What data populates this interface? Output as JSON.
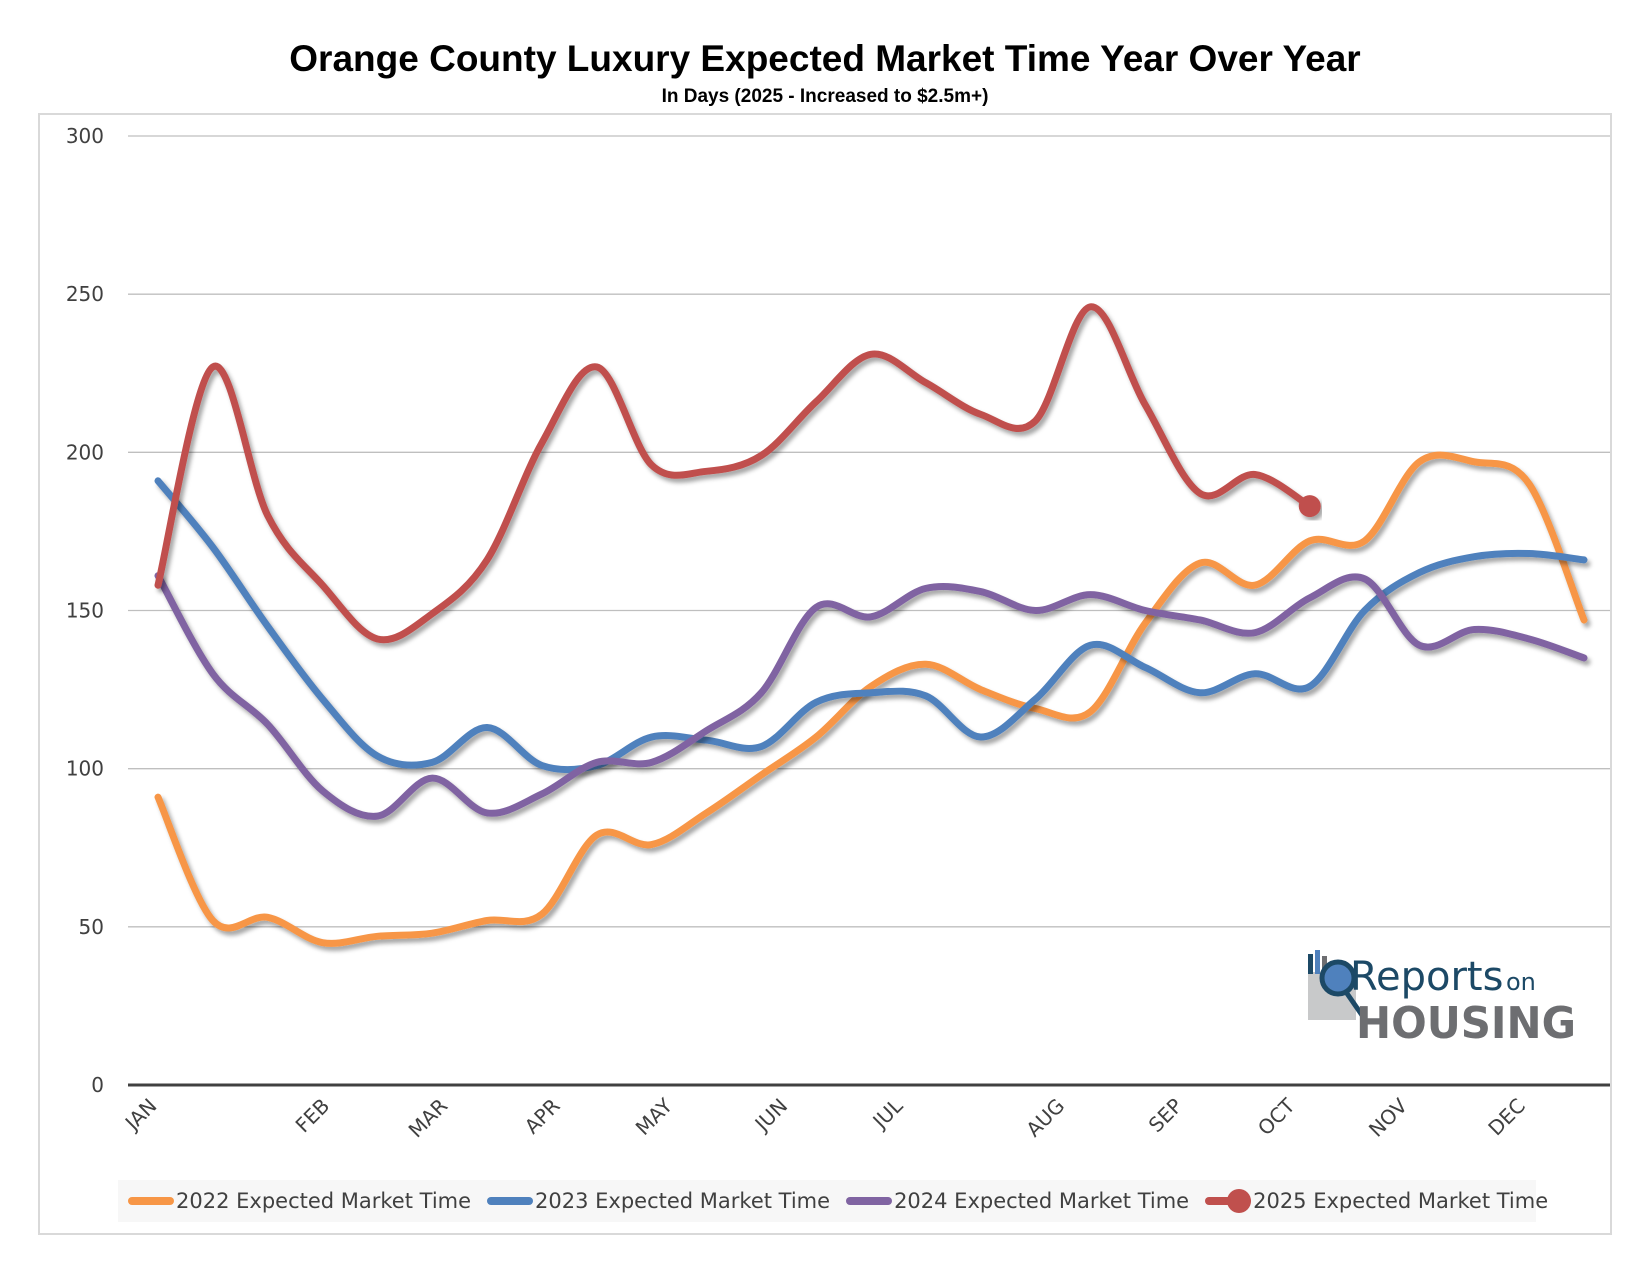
{
  "chart_data": {
    "type": "line",
    "title": "Orange County Luxury Expected Market Time Year Over Year",
    "subtitle": "In Days (2025 - Increased to $2.5m+)",
    "xlabel": "",
    "ylabel": "",
    "ylim": [
      0,
      300
    ],
    "yticks": [
      0,
      50,
      100,
      150,
      200,
      250,
      300
    ],
    "grid": true,
    "legend_position": "bottom",
    "month_labels": [
      {
        "label": "JAN",
        "index": 0
      },
      {
        "label": "FEB",
        "index": 3.15
      },
      {
        "label": "MAR",
        "index": 5.3
      },
      {
        "label": "APR",
        "index": 7.35
      },
      {
        "label": "MAY",
        "index": 9.4
      },
      {
        "label": "JUN",
        "index": 11.5
      },
      {
        "label": "JUL",
        "index": 13.6
      },
      {
        "label": "AUG",
        "index": 16.55
      },
      {
        "label": "SEP",
        "index": 18.7
      },
      {
        "label": "OCT",
        "index": 20.75
      },
      {
        "label": "NOV",
        "index": 22.8
      },
      {
        "label": "DEC",
        "index": 24.95
      }
    ],
    "x_count": 27,
    "series": [
      {
        "name": "2022 Expected Market Time",
        "color": "#f79646",
        "values": [
          91,
          52,
          53,
          45,
          47,
          48,
          52,
          54,
          79,
          76,
          86,
          98,
          110,
          126,
          133,
          125,
          119,
          118,
          146,
          165,
          158,
          172,
          172,
          197,
          197,
          190,
          147
        ]
      },
      {
        "name": "2023 Expected Market Time",
        "color": "#4f81bd",
        "values": [
          191,
          170,
          145,
          122,
          104,
          102,
          113,
          101,
          101,
          110,
          109,
          107,
          121,
          124,
          123,
          110,
          122,
          139,
          132,
          124,
          130,
          126,
          150,
          162,
          167,
          168,
          166
        ]
      },
      {
        "name": "2024 Expected Market Time",
        "color": "#8064a2",
        "values": [
          161,
          130,
          114,
          93,
          85,
          97,
          86,
          92,
          102,
          102,
          112,
          124,
          151,
          148,
          157,
          156,
          150,
          155,
          150,
          147,
          143,
          154,
          160,
          139,
          144,
          141,
          135
        ]
      },
      {
        "name": "2025 Expected Market Time",
        "color": "#c0504d",
        "values": [
          158,
          227,
          180,
          158,
          141,
          149,
          166,
          203,
          227,
          196,
          194,
          199,
          216,
          231,
          222,
          212,
          210,
          246,
          215,
          187,
          193,
          183
        ],
        "last_point_marker": true
      }
    ]
  },
  "logo": {
    "line1": "Reports",
    "line1_suffix": "on",
    "line2": "HOUSING",
    "colors": {
      "navy": "#1c4966",
      "gray": "#6d6e71",
      "blue": "#4f81bd"
    }
  }
}
